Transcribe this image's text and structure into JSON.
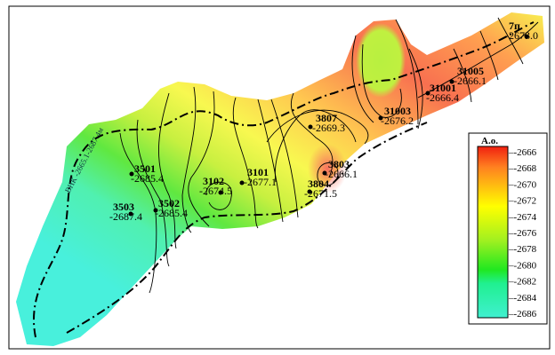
{
  "map": {
    "contact_label": "ВНК -2665.1-2687.4м",
    "colors": {
      "low": "#40f0d8",
      "mid_green": "#40e020",
      "yellow": "#ffff40",
      "high": "#f04020"
    },
    "wells": [
      {
        "name": "3501",
        "value": "-2685.4"
      },
      {
        "name": "3502",
        "value": "-2685.4"
      },
      {
        "name": "3503",
        "value": "-2687.4"
      },
      {
        "name": "3102",
        "value": "-2674.5"
      },
      {
        "name": "3101",
        "value": "-2677.1"
      },
      {
        "name": "3807",
        "value": "-2669.3"
      },
      {
        "name": "3803",
        "value": "-2666.1"
      },
      {
        "name": "3804",
        "value": "-2671.5"
      },
      {
        "name": "31003",
        "value": "-2676.2"
      },
      {
        "name": "31001",
        "value": "-2666.4"
      },
      {
        "name": "31005",
        "value": "-2666.1"
      },
      {
        "name": "7п",
        "value": "-2673.0"
      }
    ]
  },
  "legend": {
    "title": "А.о.",
    "ticks": [
      "-2666",
      "-2668",
      "-2670",
      "-2672",
      "-2674",
      "-2676",
      "-2678",
      "-2680",
      "-2682",
      "-2684",
      "-2686"
    ]
  }
}
